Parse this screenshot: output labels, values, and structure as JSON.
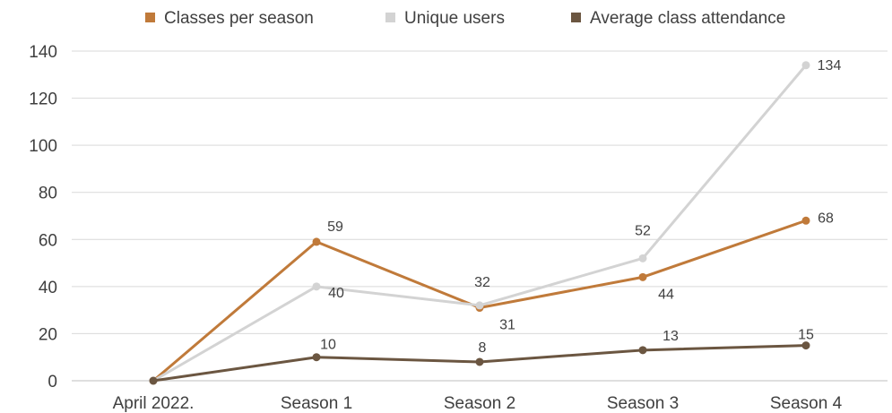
{
  "chart_data": {
    "type": "line",
    "categories": [
      "April 2022.",
      "Season 1",
      "Season 2",
      "Season 3",
      "Season 4"
    ],
    "series": [
      {
        "name": "Classes per season",
        "color": "#c07a3a",
        "values": [
          0,
          59,
          31,
          44,
          68
        ],
        "labels": [
          "",
          "59",
          "31",
          "44",
          "68"
        ]
      },
      {
        "name": "Unique users",
        "color": "#d3d3d3",
        "values": [
          0,
          40,
          32,
          52,
          134
        ],
        "labels": [
          "",
          "40",
          "32",
          "52",
          "134"
        ]
      },
      {
        "name": "Average class attendance",
        "color": "#6b5641",
        "values": [
          0,
          10,
          8,
          13,
          15
        ],
        "labels": [
          "",
          "10",
          "8",
          "13",
          "15"
        ]
      }
    ],
    "ylim": [
      0,
      140
    ],
    "yticks": [
      0,
      20,
      40,
      60,
      80,
      100,
      120,
      140
    ],
    "grid": true,
    "legend": "top",
    "title": "",
    "xlabel": "",
    "ylabel": ""
  }
}
